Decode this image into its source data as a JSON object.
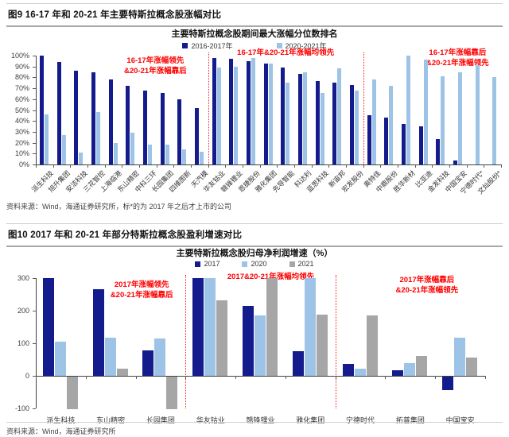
{
  "page": {
    "figure9_caption": "图9  16-17 年和 20-21 年主要特斯拉概念股涨幅对比",
    "figure9_source": "资料来源：Wind，海通证券研究所，标*的为 2017 年之后才上市的公司",
    "figure10_caption": "图10 2017 年和 20-21 年部分特斯拉概念股盈利增速对比",
    "figure10_source": "资料来源：Wind，海通证券研究所"
  },
  "colors": {
    "navy": "#141B8C",
    "light_blue": "#9DC3E6",
    "gray": "#A6A6A6",
    "annotation_red": "#FF0000"
  },
  "chart_data": [
    {
      "type": "bar",
      "title": "主要特斯拉概念股期间最大涨幅分位数排名",
      "legend": [
        "2016-2017年",
        "2020-2021年"
      ],
      "series_colors": [
        "#141B8C",
        "#9DC3E6"
      ],
      "ylim": [
        0,
        100
      ],
      "ytick_step": 10,
      "ytick_suffix": "%",
      "grid": false,
      "legend_position": "top",
      "groups": [
        {
          "annotation": "16-17年涨幅领先\n&20-21年涨幅靠后",
          "categories": [
            "派生科技",
            "旭升集团",
            "安洁科技",
            "三花智控",
            "上海临港",
            "东山精密",
            "中科三环",
            "长园集团",
            "四维图新",
            "天汽模"
          ],
          "series": [
            {
              "name": "2016-2017年",
              "values": [
                100,
                94,
                86,
                85,
                78,
                72,
                68,
                66,
                60,
                52
              ]
            },
            {
              "name": "2020-2021年",
              "values": [
                46,
                27,
                11,
                48,
                20,
                29,
                18,
                18,
                14,
                12
              ]
            }
          ]
        },
        {
          "annotation": "16-17年&20-21年涨幅均领先",
          "categories": [
            "华友钴业",
            "赣锋锂业",
            "恩捷股份",
            "雅化集团",
            "先导智能",
            "科达利",
            "蓝思科技",
            "新宙邦",
            "宏发股份"
          ],
          "series": [
            {
              "name": "2016-2017年",
              "values": [
                98,
                97,
                95,
                93,
                89,
                83,
                77,
                75,
                73
              ]
            },
            {
              "name": "2020-2021年",
              "values": [
                89,
                90,
                98,
                93,
                75,
                85,
                66,
                88,
                68
              ]
            }
          ]
        },
        {
          "annotation": "16-17年涨幅靠后\n&20-21年涨幅领先",
          "categories": [
            "奥特佳",
            "中鼎股份",
            "胜华新材",
            "比亚迪",
            "金发科技",
            "中国宝安",
            "宁德时代*",
            "文灿股份*"
          ],
          "series": [
            {
              "name": "2016-2017年",
              "values": [
                45,
                43,
                37,
                35,
                23,
                4,
                null,
                null
              ]
            },
            {
              "name": "2020-2021年",
              "values": [
                78,
                72,
                100,
                96,
                81,
                85,
                91,
                80
              ]
            }
          ]
        }
      ]
    },
    {
      "type": "bar",
      "title": "主要特斯拉概念股归母净利润增速（%）",
      "legend": [
        "2017",
        "2020",
        "2021"
      ],
      "series_colors": [
        "#141B8C",
        "#9DC3E6",
        "#A6A6A6"
      ],
      "ylim": [
        -100,
        300
      ],
      "ytick_step": 100,
      "ytick_suffix": "",
      "grid": false,
      "legend_position": "top",
      "groups": [
        {
          "annotation": "2017年涨幅领先\n&20-21年涨幅靠后",
          "categories": [
            "派生科技",
            "东山精密",
            "长园集团"
          ],
          "series": [
            {
              "name": "2017",
              "values": [
                300,
                265,
                77
              ]
            },
            {
              "name": "2020",
              "values": [
                105,
                118,
                115
              ]
            },
            {
              "name": "2021",
              "values": [
                -100,
                22,
                -100
              ]
            }
          ]
        },
        {
          "annotation": "2017&20-21年涨幅均领先",
          "categories": [
            "华友钴业",
            "赣锋锂业",
            "雅化集团"
          ],
          "series": [
            {
              "name": "2017",
              "values": [
                300,
                215,
                75
              ]
            },
            {
              "name": "2020",
              "values": [
                300,
                185,
                300
              ]
            },
            {
              "name": "2021",
              "values": [
                232,
                300,
                188
              ]
            }
          ]
        },
        {
          "annotation": "2017年涨幅靠后\n&20-21年涨幅领先",
          "categories": [
            "宁德时代",
            "拓普集团",
            "中国宝安"
          ],
          "series": [
            {
              "name": "2017",
              "values": [
                36,
                18,
                -42
              ]
            },
            {
              "name": "2020",
              "values": [
                22,
                38,
                118
              ]
            },
            {
              "name": "2021",
              "values": [
                185,
                62,
                55
              ]
            }
          ]
        }
      ]
    }
  ]
}
